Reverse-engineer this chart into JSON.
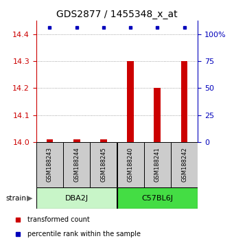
{
  "title": "GDS2877 / 1455348_x_at",
  "samples": [
    "GSM188243",
    "GSM188244",
    "GSM188245",
    "GSM188240",
    "GSM188241",
    "GSM188242"
  ],
  "group1_name": "DBA2J",
  "group1_color": "#c8f5c8",
  "group2_name": "C57BL6J",
  "group2_color": "#44dd44",
  "transformed_counts": [
    14.01,
    14.01,
    14.01,
    14.3,
    14.2,
    14.3
  ],
  "ylim_left": [
    14.0,
    14.45
  ],
  "ylim_right": [
    0,
    112.5
  ],
  "yticks_left": [
    14.0,
    14.1,
    14.2,
    14.3,
    14.4
  ],
  "yticks_right": [
    0,
    25,
    50,
    75,
    100
  ],
  "ytick_labels_right": [
    "0",
    "25",
    "50",
    "75",
    "100%"
  ],
  "bar_color": "#CC0000",
  "dot_color": "#0000BB",
  "bar_width": 0.25,
  "left_tick_color": "#CC0000",
  "right_tick_color": "#0000BB",
  "background_color": "#ffffff",
  "sample_box_color": "#cccccc",
  "legend_red_label": "transformed count",
  "legend_blue_label": "percentile rank within the sample"
}
